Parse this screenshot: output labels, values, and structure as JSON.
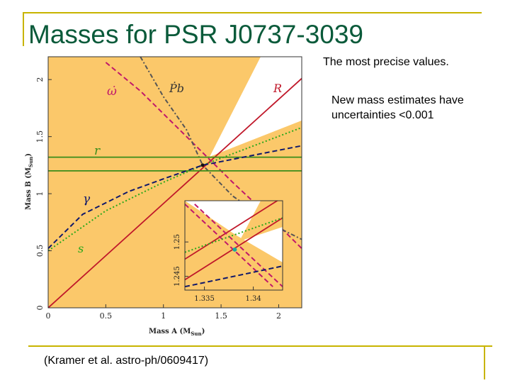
{
  "slide": {
    "title": "Masses for PSR J0737-3039",
    "note_precise": "The most precise values.",
    "note_uncertainty": "New mass estimates have uncertainties <0.001",
    "citation": "(Kramer et al. astro-ph/0609417)"
  },
  "colors": {
    "accent_lines": "#c8b400",
    "title": "#0a5a3a",
    "excluded_region": "#fbc86a",
    "r_line": "#c0182a",
    "omega_dot": "#c0186a",
    "r_shapiro": "#3a8c1a",
    "s_shapiro": "#2aa81a",
    "gamma": "#10186a",
    "pbdot": "#555555"
  },
  "chart_data": [
    {
      "type": "line",
      "xlabel": "Mass A (M",
      "xlabel_sub": "Sun",
      "xlabel_close": ")",
      "ylabel": "Mass B (M",
      "ylabel_sub": "Sun",
      "ylabel_close": ")",
      "xlim": [
        0,
        2.2
      ],
      "ylim": [
        0,
        2.2
      ],
      "xticks": [
        "0",
        "0.5",
        "1",
        "1.5",
        "2"
      ],
      "yticks": [
        "0",
        "0.5",
        "1",
        "1.5",
        "2"
      ],
      "shaded_region": "excluded",
      "series": [
        {
          "name": "R",
          "style": "solid",
          "points": [
            [
              0,
              0
            ],
            [
              2.2,
              2.01
            ]
          ]
        },
        {
          "name": "ω̇",
          "style": "dashed",
          "points": [
            [
              0.5,
              2.15
            ],
            [
              0.8,
              1.9
            ],
            [
              1.2,
              1.5
            ],
            [
              1.6,
              1.1
            ],
            [
              2.0,
              0.72
            ],
            [
              2.2,
              0.52
            ]
          ]
        },
        {
          "name": "Ṗb",
          "style": "dash-dot",
          "points": [
            [
              0.8,
              2.2
            ],
            [
              1.0,
              1.85
            ],
            [
              1.2,
              1.56
            ],
            [
              1.34,
              1.25
            ],
            [
              1.6,
              0.98
            ],
            [
              2.0,
              0.7
            ],
            [
              2.2,
              0.6
            ]
          ]
        },
        {
          "name": "r",
          "style": "solid",
          "points": [
            [
              0,
              1.32
            ],
            [
              2.2,
              1.32
            ]
          ]
        },
        {
          "name": "",
          "style": "solid",
          "points": [
            [
              0,
              1.2
            ],
            [
              2.2,
              1.2
            ]
          ]
        },
        {
          "name": "s",
          "style": "dotted",
          "points": [
            [
              0,
              0.5
            ],
            [
              0.5,
              0.85
            ],
            [
              1.0,
              1.1
            ],
            [
              1.34,
              1.25
            ],
            [
              2.2,
              1.58
            ]
          ]
        },
        {
          "name": "γ",
          "style": "dashed",
          "points": [
            [
              0,
              0.52
            ],
            [
              0.3,
              0.82
            ],
            [
              0.7,
              1.02
            ],
            [
              1.0,
              1.13
            ],
            [
              1.34,
              1.25
            ],
            [
              2.2,
              1.42
            ]
          ]
        }
      ],
      "labels": [
        "ω̇",
        "Ṗb",
        "R",
        "r",
        "γ",
        "s"
      ]
    },
    {
      "type": "line",
      "name": "inset",
      "xlim": [
        1.333,
        1.343
      ],
      "ylim": [
        1.243,
        1.256
      ],
      "xticks": [
        "1.335",
        "1.34"
      ],
      "yticks": [
        "1.245",
        "1.25"
      ],
      "series": [
        {
          "name": "R",
          "style": "solid",
          "points": [
            [
              1.333,
              1.2475
            ],
            [
              1.343,
              1.2565
            ]
          ]
        },
        {
          "name": "R",
          "style": "solid",
          "points": [
            [
              1.333,
              1.2445
            ],
            [
              1.343,
              1.2535
            ]
          ]
        },
        {
          "name": "ω̇",
          "style": "dashed",
          "points": [
            [
              1.333,
              1.2555
            ],
            [
              1.342,
              1.2435
            ]
          ]
        },
        {
          "name": "ω̇",
          "style": "dashed",
          "points": [
            [
              1.334,
              1.2555
            ],
            [
              1.343,
              1.2435
            ]
          ]
        },
        {
          "name": "s",
          "style": "dotted",
          "points": [
            [
              1.333,
              1.2485
            ],
            [
              1.343,
              1.2535
            ]
          ]
        },
        {
          "name": "γ",
          "style": "dashed",
          "points": [
            [
              1.333,
              1.2435
            ],
            [
              1.343,
              1.2465
            ]
          ]
        }
      ]
    }
  ]
}
